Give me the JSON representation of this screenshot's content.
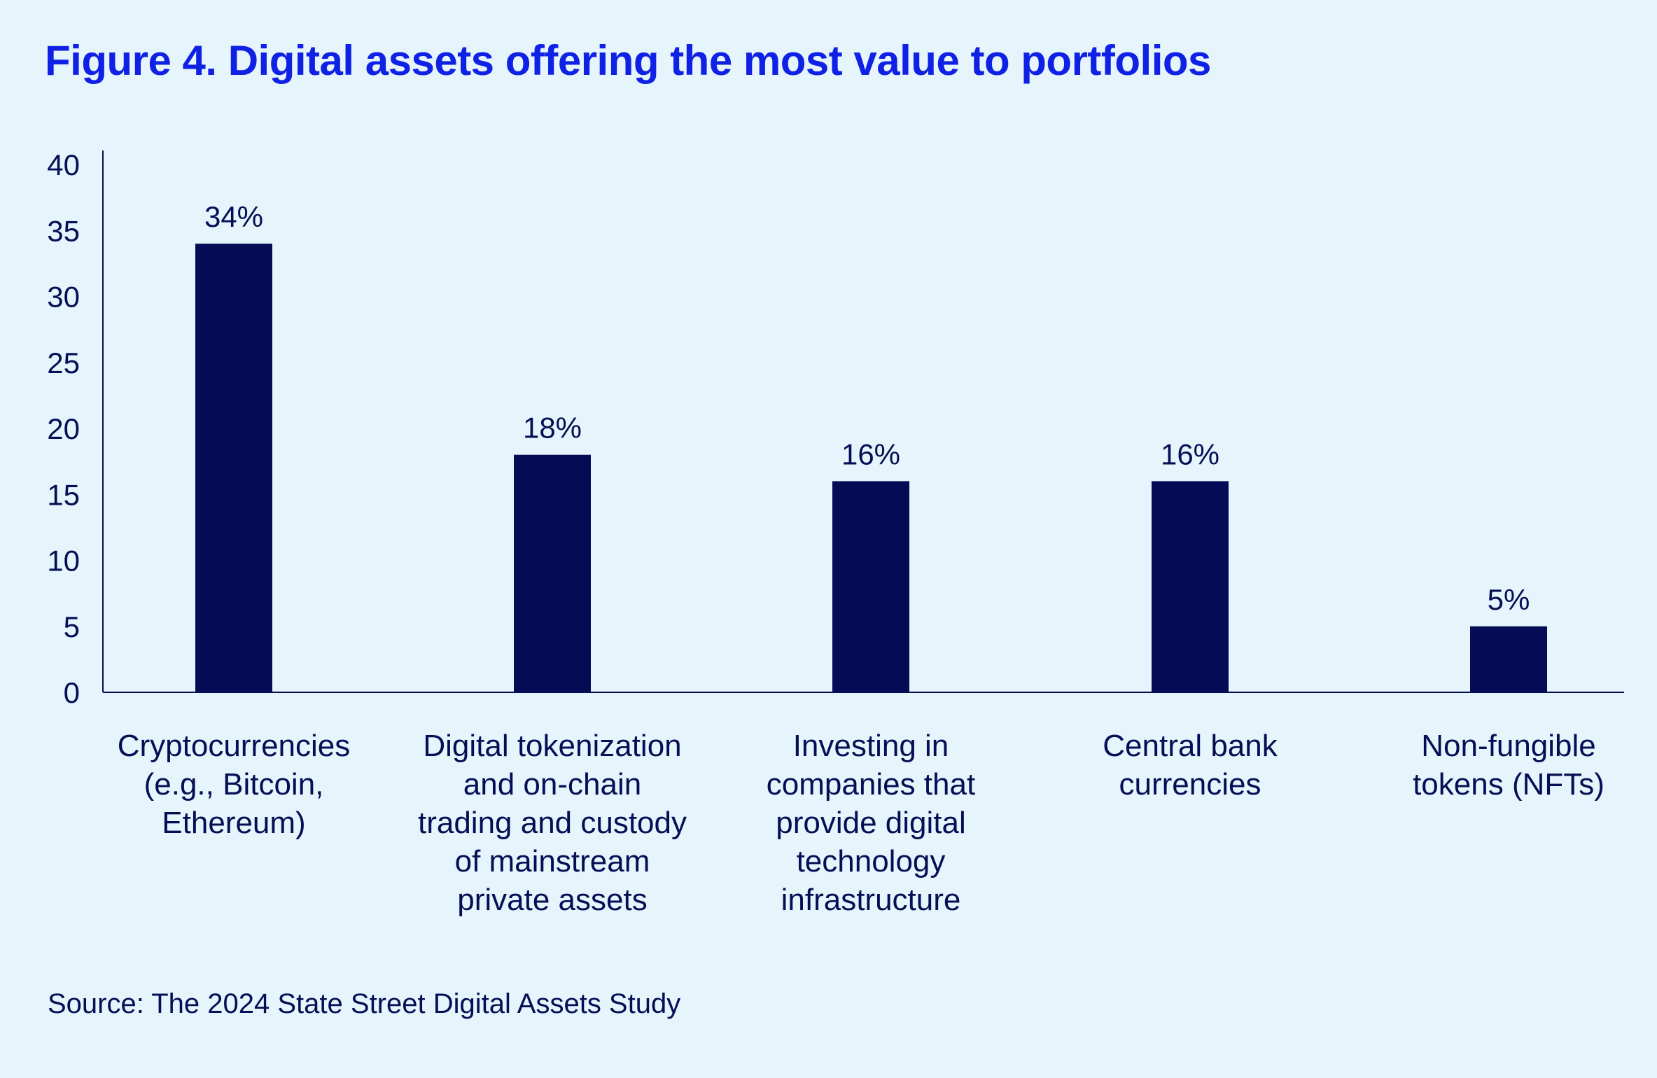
{
  "title": "Figure 4. Digital assets offering the most value to portfolios",
  "source": "Source: The 2024 State Street Digital Assets Study",
  "colors": {
    "background": "#e6f4fb",
    "title": "#1021e6",
    "bar": "#040c55",
    "text": "#050f55"
  },
  "chart_data": {
    "type": "bar",
    "title": "Figure 4. Digital assets offering the most value to portfolios",
    "xlabel": "",
    "ylabel": "",
    "ylim": [
      0,
      40
    ],
    "yticks": [
      0,
      5,
      10,
      15,
      20,
      25,
      30,
      35,
      40
    ],
    "grid": false,
    "categories": [
      [
        "Cryptocurrencies",
        "(e.g., Bitcoin,",
        "Ethereum)"
      ],
      [
        "Digital tokenization",
        "and on-chain",
        "trading and custody",
        "of mainstream",
        "private assets"
      ],
      [
        "Investing in",
        "companies that",
        "provide digital",
        "technology",
        "infrastructure"
      ],
      [
        "Central bank",
        "currencies"
      ],
      [
        "Non-fungible",
        "tokens (NFTs)"
      ]
    ],
    "values": [
      34,
      18,
      16,
      16,
      5
    ],
    "data_labels": [
      "34%",
      "18%",
      "16%",
      "16%",
      "5%"
    ]
  }
}
